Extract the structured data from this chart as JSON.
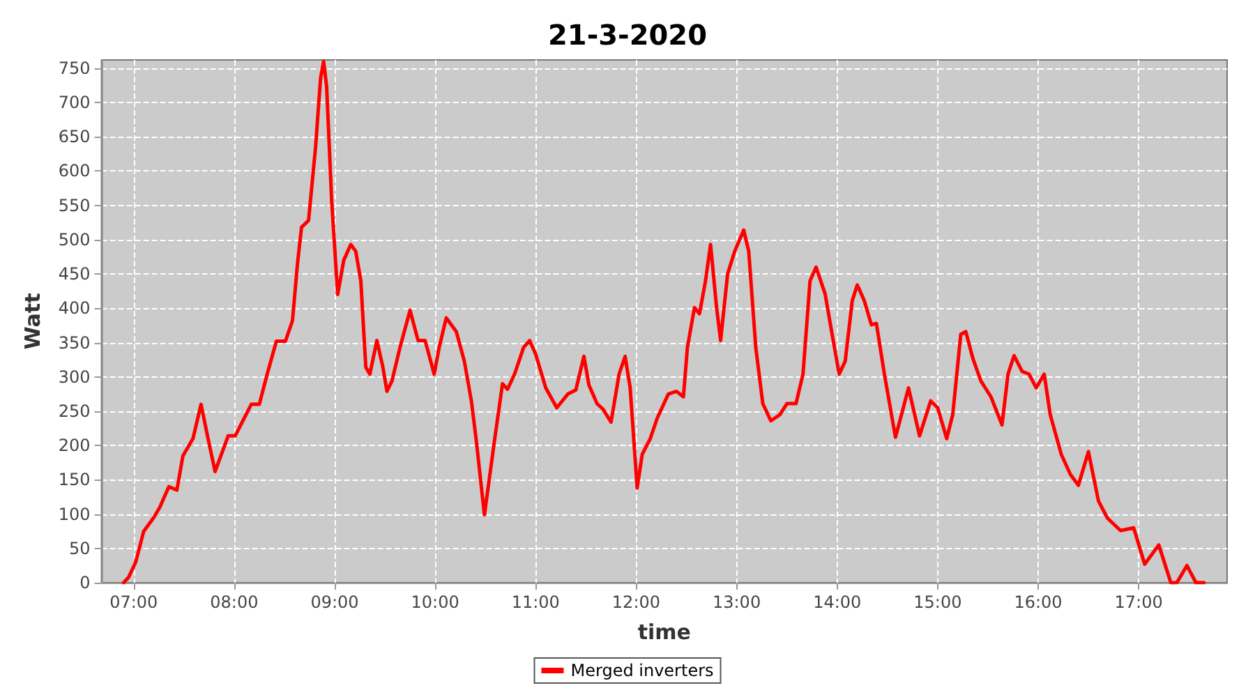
{
  "chart_data": {
    "type": "line",
    "title": "21-3-2020",
    "xlabel": "time",
    "ylabel": "Watt",
    "xlim": [
      6.68,
      17.88
    ],
    "xticks": [
      {
        "value": 7,
        "label": "07:00"
      },
      {
        "value": 8,
        "label": "08:00"
      },
      {
        "value": 9,
        "label": "09:00"
      },
      {
        "value": 10,
        "label": "10:00"
      },
      {
        "value": 11,
        "label": "11:00"
      },
      {
        "value": 12,
        "label": "12:00"
      },
      {
        "value": 13,
        "label": "13:00"
      },
      {
        "value": 14,
        "label": "14:00"
      },
      {
        "value": 15,
        "label": "15:00"
      },
      {
        "value": 16,
        "label": "16:00"
      },
      {
        "value": 17,
        "label": "17:00"
      }
    ],
    "ylim": [
      0,
      762
    ],
    "yticks": [
      0,
      50,
      100,
      150,
      200,
      250,
      300,
      350,
      400,
      450,
      500,
      550,
      600,
      650,
      700,
      750
    ],
    "grid": true,
    "legend": "bottom",
    "marker": "none",
    "line_style": "solid",
    "x": [
      6.9,
      6.95,
      7.02,
      7.1,
      7.2,
      7.26,
      7.35,
      7.43,
      7.49,
      7.59,
      7.67,
      7.74,
      7.81,
      7.94,
      8.01,
      8.1,
      8.17,
      8.25,
      8.33,
      8.42,
      8.51,
      8.58,
      8.63,
      8.67,
      8.74,
      8.81,
      8.86,
      8.89,
      8.92,
      8.97,
      9.03,
      9.09,
      9.16,
      9.21,
      9.26,
      9.31,
      9.35,
      9.42,
      9.48,
      9.52,
      9.57,
      9.65,
      9.75,
      9.83,
      9.9,
      9.99,
      10.04,
      10.11,
      10.21,
      10.29,
      10.36,
      10.41,
      10.49,
      10.59,
      10.67,
      10.72,
      10.79,
      10.88,
      10.94,
      11.0,
      11.1,
      11.21,
      11.32,
      11.4,
      11.48,
      11.53,
      11.61,
      11.67,
      11.75,
      11.83,
      11.89,
      11.94,
      12.01,
      12.06,
      12.14,
      12.21,
      12.32,
      12.4,
      12.47,
      12.51,
      12.58,
      12.63,
      12.69,
      12.74,
      12.8,
      12.84,
      12.91,
      12.98,
      13.07,
      13.12,
      13.19,
      13.26,
      13.34,
      13.43,
      13.5,
      13.59,
      13.66,
      13.73,
      13.79,
      13.88,
      13.95,
      14.02,
      14.08,
      14.15,
      14.2,
      14.27,
      14.34,
      14.39,
      14.47,
      14.58,
      14.64,
      14.71,
      14.82,
      14.93,
      15.0,
      15.09,
      15.15,
      15.23,
      15.28,
      15.35,
      15.43,
      15.53,
      15.64,
      15.7,
      15.76,
      15.84,
      15.91,
      15.98,
      16.06,
      16.12,
      16.23,
      16.32,
      16.4,
      16.5,
      16.6,
      16.69,
      16.82,
      16.95,
      17.06,
      17.2,
      17.32,
      17.38,
      17.48,
      17.57,
      17.65
    ],
    "series": [
      {
        "name": "Merged inverters",
        "color": "#ff0000",
        "values": [
          0,
          8,
          30,
          75,
          95,
          110,
          140,
          135,
          185,
          210,
          260,
          210,
          162,
          214,
          214,
          240,
          260,
          260,
          305,
          352,
          352,
          382,
          465,
          518,
          528,
          635,
          736,
          760,
          723,
          557,
          420,
          470,
          493,
          483,
          440,
          314,
          304,
          353,
          314,
          279,
          294,
          343,
          397,
          353,
          353,
          304,
          343,
          386,
          366,
          323,
          265,
          206,
          99,
          207,
          290,
          282,
          304,
          343,
          353,
          333,
          284,
          255,
          275,
          281,
          330,
          288,
          261,
          253,
          234,
          304,
          330,
          284,
          138,
          187,
          210,
          240,
          275,
          279,
          271,
          343,
          401,
          392,
          440,
          493,
          401,
          353,
          450,
          483,
          514,
          483,
          343,
          261,
          236,
          245,
          261,
          261,
          304,
          440,
          460,
          421,
          362,
          304,
          323,
          411,
          434,
          411,
          376,
          378,
          304,
          212,
          245,
          284,
          214,
          265,
          255,
          210,
          245,
          362,
          366,
          327,
          294,
          271,
          230,
          304,
          331,
          308,
          304,
          284,
          304,
          245,
          187,
          158,
          142,
          191,
          119,
          94,
          76,
          80,
          27,
          55,
          0,
          0,
          25,
          0,
          0
        ]
      }
    ]
  }
}
